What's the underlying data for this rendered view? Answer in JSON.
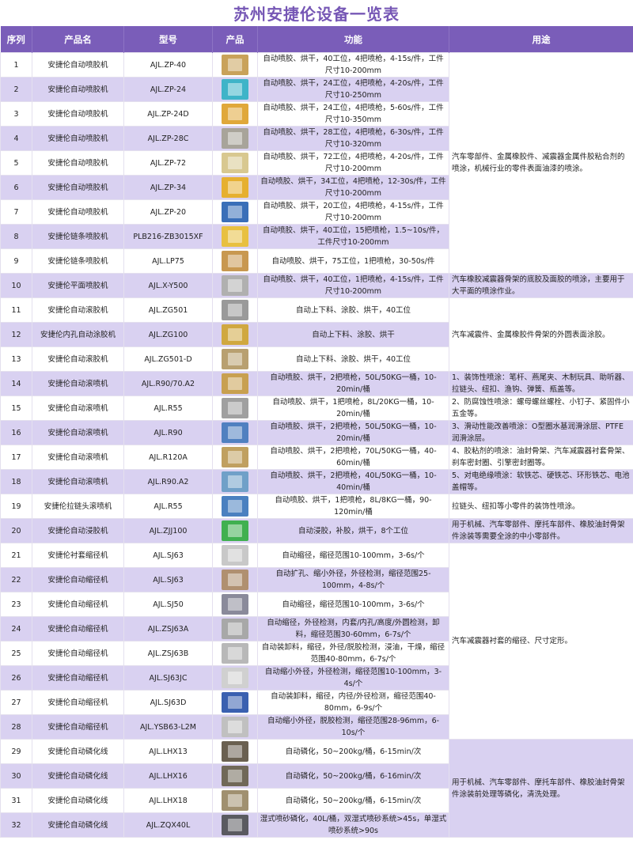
{
  "title": "苏州安捷伦设备一览表",
  "colors": {
    "header": "#7a5db9",
    "stripe": "#d9d1f1",
    "title": "#7657b5"
  },
  "headers": [
    "序列",
    "产品名",
    "型号",
    "产品",
    "功能",
    "用途"
  ],
  "rows": [
    {
      "seq": "1",
      "name": "安捷伦自动喷胶机",
      "model": "AJL.ZP-40",
      "func": "自动喷胶、烘干，40工位，4把喷枪，4-15s/件，工件尺寸10-200mm",
      "img": "#c9a25a"
    },
    {
      "seq": "2",
      "name": "安捷伦自动喷胶机",
      "model": "AJL.ZP-24",
      "func": "自动喷胶、烘干，24工位，4把喷枪，4-20s/件，工件尺寸10-250mm",
      "img": "#3fb4c8"
    },
    {
      "seq": "3",
      "name": "安捷伦自动喷胶机",
      "model": "AJL.ZP-24D",
      "func": "自动喷胶、烘干，24工位，4把喷枪，5-60s/件，工件尺寸10-350mm",
      "img": "#e0a83a"
    },
    {
      "seq": "4",
      "name": "安捷伦自动喷胶机",
      "model": "AJL.ZP-28C",
      "func": "自动喷胶、烘干，28工位，4把喷枪，6-30s/件，工件尺寸10-320mm",
      "img": "#a8a49a"
    },
    {
      "seq": "5",
      "name": "安捷伦自动喷胶机",
      "model": "AJL.ZP-72",
      "func": "自动喷胶、烘干，72工位，4把喷枪，4-20s/件，工件尺寸10-200mm",
      "img": "#d8c890"
    },
    {
      "seq": "6",
      "name": "安捷伦自动喷胶机",
      "model": "AJL.ZP-34",
      "func": "自动喷胶、烘干，34工位，4把喷枪，12-30s/件，工件尺寸10-200mm",
      "img": "#e6b030"
    },
    {
      "seq": "7",
      "name": "安捷伦自动喷胶机",
      "model": "AJL.ZP-20",
      "func": "自动喷胶、烘干，20工位，4把喷枪，4-15s/件，工件尺寸10-200mm",
      "img": "#3a6fb8"
    },
    {
      "seq": "8",
      "name": "安捷伦链条喷胶机",
      "model": "PLB216-ZB3015XF",
      "func": "自动喷胶、烘干，40工位，15把喷枪，1.5~10s/件，工件尺寸10-200mm",
      "img": "#e8c040"
    },
    {
      "seq": "9",
      "name": "安捷伦链条喷胶机",
      "model": "AJL.LP75",
      "func": "自动喷胶、烘干，75工位，1把喷枪，30-50s/件",
      "img": "#c89850"
    },
    {
      "seq": "10",
      "name": "安捷伦平面喷胶机",
      "model": "AJL.X-Y500",
      "func": "自动喷胶、烘干，40工位，1把喷枪，4-15s/件，工件尺寸10-200mm",
      "img": "#b0b0b0"
    },
    {
      "seq": "11",
      "name": "安捷伦自动滚胶机",
      "model": "AJL.ZG501",
      "func": "自动上下料、涂胶、烘干，40工位",
      "img": "#9a9a9a"
    },
    {
      "seq": "12",
      "name": "安捷伦内孔自动涂胶机",
      "model": "AJL.ZG100",
      "func": "自动上下料、涂胶、烘干",
      "img": "#d0a840"
    },
    {
      "seq": "13",
      "name": "安捷伦自动滚胶机",
      "model": "AJL.ZG501-D",
      "func": "自动上下料、涂胶、烘干，40工位",
      "img": "#b8a070"
    },
    {
      "seq": "14",
      "name": "安捷伦自动滚喷机",
      "model": "AJL.R90/70.A2",
      "func": "自动喷胶、烘干，2把喷枪，50L/50KG一桶，10-20min/桶",
      "img": "#c8a050"
    },
    {
      "seq": "15",
      "name": "安捷伦自动滚喷机",
      "model": "AJL.R55",
      "func": "自动喷胶、烘干，1把喷枪，8L/20KG一桶，10-20min/桶",
      "img": "#a0a0a0"
    },
    {
      "seq": "16",
      "name": "安捷伦自动滚喷机",
      "model": "AJL.R90",
      "func": "自动喷胶、烘干，2把喷枪，50L/50KG一桶，10-20min/桶",
      "img": "#5080c0"
    },
    {
      "seq": "17",
      "name": "安捷伦自动滚喷机",
      "model": "AJL.R120A",
      "func": "自动喷胶、烘干，2把喷枪，70L/50KG一桶，40-60min/桶",
      "img": "#c0a060"
    },
    {
      "seq": "18",
      "name": "安捷伦自动滚喷机",
      "model": "AJL.R90.A2",
      "func": "自动喷胶、烘干，2把喷枪，40L/50KG一桶，10-40min/桶",
      "img": "#70a0c8"
    },
    {
      "seq": "19",
      "name": "安捷伦拉链头滚喷机",
      "model": "AJL.R55",
      "func": "自动喷胶、烘干，1把喷枪，8L/8KG一桶，90-120min/桶",
      "img": "#4a80c0"
    },
    {
      "seq": "20",
      "name": "安捷伦自动浸胶机",
      "model": "AJL.ZJJ100",
      "func": "自动浸胶，补胶，烘干，8个工位",
      "img": "#40b050"
    },
    {
      "seq": "21",
      "name": "安捷伦衬套缩径机",
      "model": "AJL.SJ63",
      "func": "自动缩径，缩径范围10-100mm，3-6s/个",
      "img": "#c8c8c8"
    },
    {
      "seq": "22",
      "name": "安捷伦自动缩径机",
      "model": "AJL.SJ63",
      "func": "自动扩孔、缩小外径，外径检测，缩径范围25-100mm，4-8s/个",
      "img": "#b09070"
    },
    {
      "seq": "23",
      "name": "安捷伦自动缩径机",
      "model": "AJL.SJ50",
      "func": "自动缩径，缩径范围10-100mm，3-6s/个",
      "img": "#8a8a9a"
    },
    {
      "seq": "24",
      "name": "安捷伦自动缩径机",
      "model": "AJL.ZSJ63A",
      "func": "自动缩径，外径检测，内套/内孔/高度/外圆检测，卸料，缩径范围30-60mm，6-7s/个",
      "img": "#a8a8a8"
    },
    {
      "seq": "25",
      "name": "安捷伦自动缩径机",
      "model": "AJL.ZSJ63B",
      "func": "自动装卸料，缩径，外径/脱胶检测，浸油，干燥，缩径范围40-80mm，6-7s/个",
      "img": "#b8b8b8"
    },
    {
      "seq": "26",
      "name": "安捷伦自动缩径机",
      "model": "AJL.SJ63JC",
      "func": "自动缩小外径，外径检测，缩径范围10-100mm，3-4s/个",
      "img": "#d0d0d0"
    },
    {
      "seq": "27",
      "name": "安捷伦自动缩径机",
      "model": "AJL.SJ63D",
      "func": "自动装卸料，缩径，内径/外径检测，缩径范围40-80mm，6-9s/个",
      "img": "#3a60b0"
    },
    {
      "seq": "28",
      "name": "安捷伦自动缩径机",
      "model": "AJL.YSB63-L2M",
      "func": "自动缩小外径，脱胶检测，缩径范围28-96mm，6-10s/个",
      "img": "#c0c0c0"
    },
    {
      "seq": "29",
      "name": "安捷伦自动磷化线",
      "model": "AJL.LHX13",
      "func": "自动磷化，50~200kg/桶，6-15min/次",
      "img": "#6a6050"
    },
    {
      "seq": "30",
      "name": "安捷伦自动磷化线",
      "model": "AJL.LHX16",
      "func": "自动磷化，50~200kg/桶，6-16min/次",
      "img": "#706858"
    },
    {
      "seq": "31",
      "name": "安捷伦自动磷化线",
      "model": "AJL.LHX18",
      "func": "自动磷化，50~200kg/桶，6-15min/次",
      "img": "#a09070"
    },
    {
      "seq": "32",
      "name": "安捷伦自动磷化线",
      "model": "AJL.ZQX40L",
      "func": "湿式喷砂磷化，40L/桶，双湿式喷砂系统>45s，单湿式喷砂系统>90s",
      "img": "#5a5a60"
    }
  ],
  "usage": [
    {
      "start": 1,
      "span": 9,
      "bg": "w",
      "text": "汽车零部件、金属橡胶件、减震器金属件胶粘合剂的喷涂，机械行业的零件表面油漆的喷涂。"
    },
    {
      "start": 10,
      "span": 1,
      "bg": "p",
      "text": "汽车橡胶减震器骨架的底胶及面胶的喷涂，主要用于大平面的喷涂作业。"
    },
    {
      "start": 11,
      "span": 3,
      "bg": "w",
      "text": "汽车减震件、金属橡胶件骨架的外圆表面涂胶。"
    },
    {
      "start": 14,
      "span": 1,
      "bg": "p",
      "text": "1、装饰性喷涂：笔杆、燕尾夹、木制玩具、助听器、拉链头、纽扣、渔钩、弹簧、瓶盖等。"
    },
    {
      "start": 15,
      "span": 1,
      "bg": "w",
      "text": "2、防腐蚀性喷涂：螺母螺丝螺栓、小钉子、紧固件小五金等。"
    },
    {
      "start": 16,
      "span": 1,
      "bg": "p",
      "text": "3、滑动性能改善喷涂：O型圈水基润滑涂层、PTFE润滑涂层。"
    },
    {
      "start": 17,
      "span": 1,
      "bg": "w",
      "text": "4、胶粘剂的喷涂：油封骨架、汽车减震器衬套骨架、刹车密封圈、引擎密封圈等。"
    },
    {
      "start": 18,
      "span": 1,
      "bg": "p",
      "text": "5、对电绝缘喷涂：软铁芯、硬铁芯、环形铁芯、电池盖帽等。"
    },
    {
      "start": 19,
      "span": 1,
      "bg": "w",
      "text": "拉链头、纽扣等小零件的装饰性喷涂。"
    },
    {
      "start": 20,
      "span": 1,
      "bg": "p",
      "text": "用于机械、汽车零部件、摩托车部件、橡胶油封骨架件涂装等需要全涂的中小零部件。"
    },
    {
      "start": 21,
      "span": 8,
      "bg": "w",
      "text": "汽车减震器衬套的缩径、尺寸定形。"
    },
    {
      "start": 29,
      "span": 4,
      "bg": "p",
      "text": "用于机械、汽车零部件、摩托车部件、橡胶油封骨架件涂装前处理等磷化，清洗处理。"
    }
  ]
}
